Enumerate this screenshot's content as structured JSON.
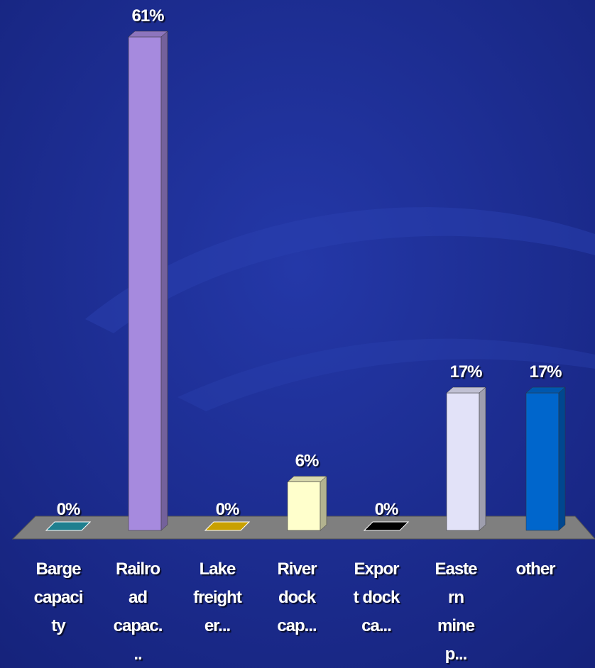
{
  "chart_data": {
    "type": "bar3d",
    "categories": [
      [
        "Barge",
        "capaci",
        "ty"
      ],
      [
        "Railro",
        "ad",
        "capac.",
        ".."
      ],
      [
        "Lake",
        "freight",
        "er..."
      ],
      [
        "River",
        "dock",
        "cap..."
      ],
      [
        "Expor",
        "t dock",
        "ca..."
      ],
      [
        "Easte",
        "rn",
        "mine",
        "p..."
      ],
      [
        "other"
      ]
    ],
    "values": [
      0,
      61,
      0,
      6,
      0,
      17,
      17
    ],
    "value_labels": [
      "0%",
      "61%",
      "0%",
      "6%",
      "0%",
      "17%",
      "17%"
    ],
    "colors": [
      "#1f7f8f",
      "#a68ade",
      "#c8a000",
      "#ffffcc",
      "#000000",
      "#e2e2f8",
      "#0066cc"
    ]
  }
}
